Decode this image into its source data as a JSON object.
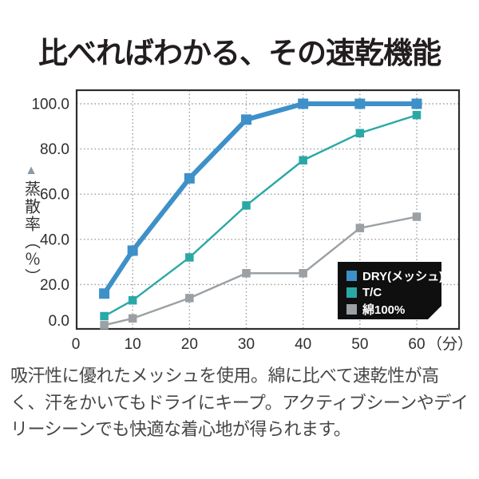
{
  "page": {
    "title": "比べればわかる、その速乾機能",
    "description": "吸汗性に優れたメッシュを使用。綿に比べて速乾性が高\nく、汗をかいてもドライにキープ。アクティブシーンやデイ\nリーシーンでも快適な着心地が得られます。"
  },
  "chart_data": {
    "type": "line",
    "title": "",
    "ylabel": "蒸散率（％）",
    "ylabel_marker": "▲",
    "xlabel": "",
    "x_unit": "（分）",
    "x": [
      5,
      10,
      20,
      30,
      40,
      50,
      60
    ],
    "series": [
      {
        "name": "DRY(メッシュ)",
        "color": "#3e90c8",
        "values": [
          16,
          35,
          67,
          93,
          100,
          100,
          100
        ]
      },
      {
        "name": "T/C",
        "color": "#2aa8a6",
        "values": [
          6,
          13,
          32,
          55,
          75,
          87,
          95
        ]
      },
      {
        "name": "綿100%",
        "color": "#9aa0a4",
        "values": [
          2,
          5,
          14,
          25,
          25,
          45,
          50
        ]
      }
    ],
    "x_ticks": [
      0,
      10,
      20,
      30,
      40,
      50,
      60
    ],
    "x_tick_labels": [
      "0",
      "10",
      "20",
      "30",
      "40",
      "50",
      "60"
    ],
    "y_ticks": [
      0,
      20,
      40,
      60,
      80,
      100
    ],
    "y_tick_labels": [
      "0.0",
      "20.0",
      "40.0",
      "60.0",
      "80.0",
      "100.0"
    ],
    "xlim": [
      0,
      67.5
    ],
    "ylim": [
      0,
      106.5
    ],
    "grid": "dotted",
    "legend_position": "inside-bottom-right",
    "colors": {
      "grid": "#9c9c9c",
      "axis_border": "#2e2e2e",
      "legend_bg": "#0f0f0f",
      "legend_text": "#ffffff",
      "tick_text": "#2e2e2e",
      "ylabel_marker": "#8b99a6"
    }
  }
}
